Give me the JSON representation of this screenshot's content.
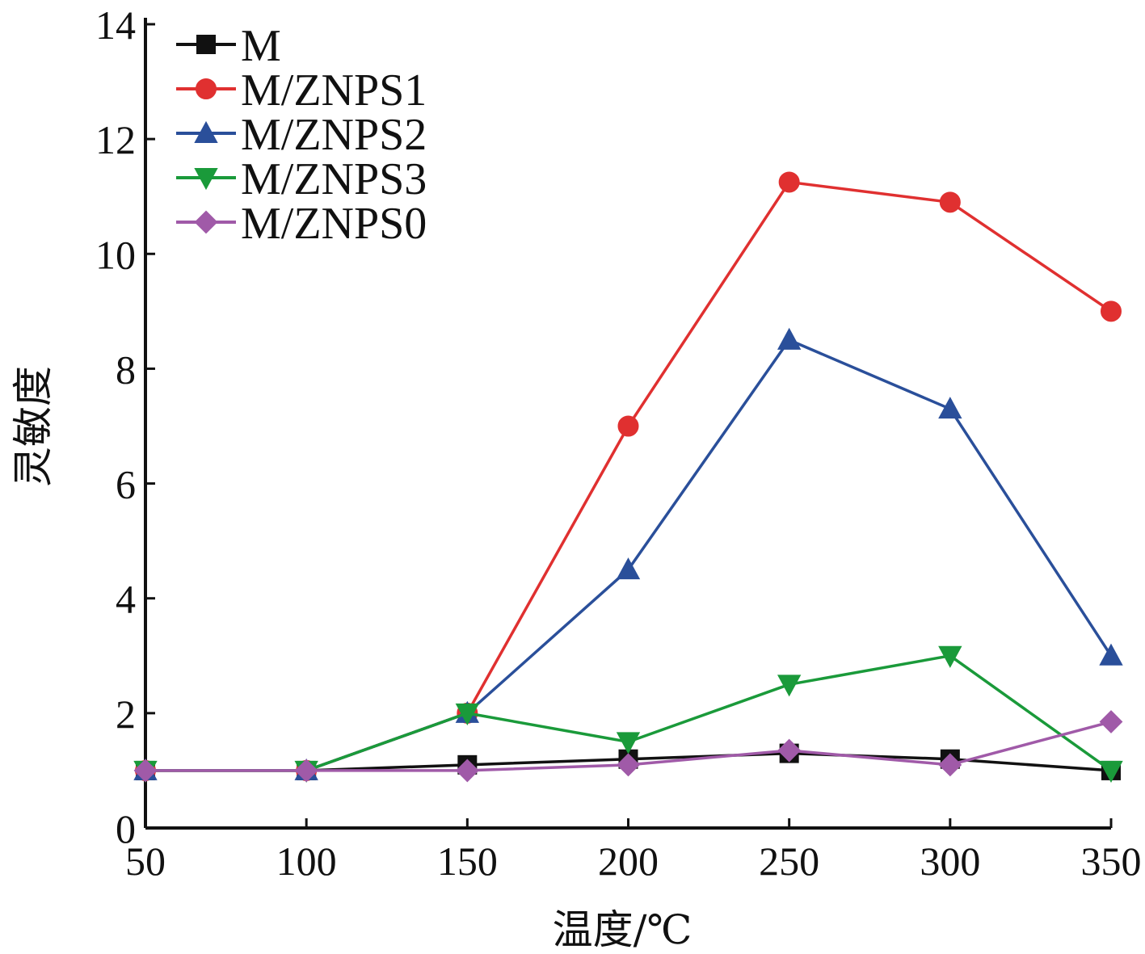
{
  "chart_data": {
    "type": "line",
    "xlabel": "温度/℃",
    "ylabel": "灵敏度",
    "x": [
      50,
      100,
      150,
      200,
      250,
      300,
      350
    ],
    "xticks": [
      50,
      100,
      150,
      200,
      250,
      300,
      350
    ],
    "yticks": [
      0,
      2,
      4,
      6,
      8,
      10,
      12,
      14
    ],
    "xlim": [
      50,
      350
    ],
    "ylim": [
      0,
      14
    ],
    "grid": false,
    "legend_position": "top-left",
    "series": [
      {
        "name": "M",
        "color": "#111111",
        "marker": "square",
        "values": [
          1.0,
          1.0,
          1.1,
          1.2,
          1.3,
          1.2,
          1.0
        ]
      },
      {
        "name": "M/ZNPS1",
        "color": "#e03030",
        "marker": "circle",
        "values": [
          1.0,
          1.0,
          2.0,
          7.0,
          11.25,
          10.9,
          9.0
        ]
      },
      {
        "name": "M/ZNPS2",
        "color": "#2a4f9a",
        "marker": "triangle-up",
        "values": [
          1.0,
          1.0,
          2.0,
          4.5,
          8.5,
          7.3,
          3.0
        ]
      },
      {
        "name": "M/ZNPS3",
        "color": "#1a9a3a",
        "marker": "triangle-down",
        "values": [
          1.0,
          1.0,
          2.0,
          1.5,
          2.5,
          3.0,
          1.0
        ]
      },
      {
        "name": "M/ZNPS0",
        "color": "#a05aa8",
        "marker": "diamond",
        "values": [
          1.0,
          1.0,
          1.0,
          1.1,
          1.35,
          1.1,
          1.85
        ]
      }
    ]
  }
}
